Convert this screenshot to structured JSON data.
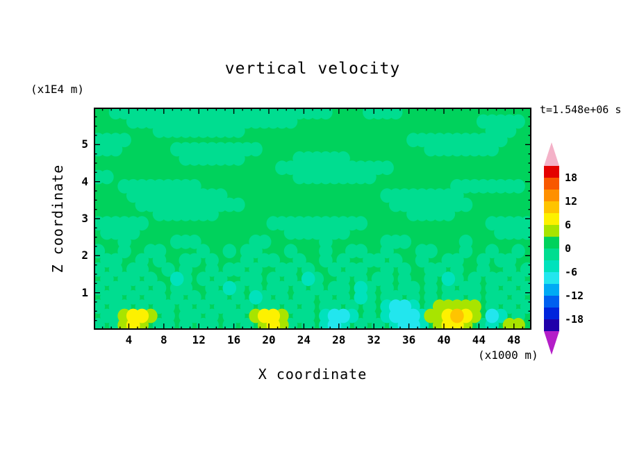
{
  "chart": {
    "title": "vertical velocity",
    "time_label": "t=1.548e+06 s",
    "x_axis": {
      "label": "X coordinate",
      "unit_label": "(x1000 m)",
      "ticks": [
        4,
        8,
        12,
        16,
        20,
        24,
        28,
        32,
        36,
        40,
        44,
        48
      ],
      "range": [
        0,
        50
      ]
    },
    "y_axis": {
      "label": "Z coordinate",
      "unit_label": "(x1E4 m)",
      "ticks": [
        1,
        2,
        3,
        4,
        5
      ],
      "range": [
        0,
        6
      ]
    }
  },
  "colorbar": {
    "labels": [
      18,
      12,
      6,
      0,
      -6,
      -12,
      -18
    ],
    "band_step": 3,
    "over_color": "#f4b2c8",
    "under_color": "#b41ec8",
    "bands": [
      {
        "min": 18,
        "max": 21,
        "color": "#e40000"
      },
      {
        "min": 15,
        "max": 18,
        "color": "#f85800"
      },
      {
        "min": 12,
        "max": 15,
        "color": "#ff9000"
      },
      {
        "min": 9,
        "max": 12,
        "color": "#ffc400"
      },
      {
        "min": 6,
        "max": 9,
        "color": "#fdf100"
      },
      {
        "min": 3,
        "max": 6,
        "color": "#a8e400"
      },
      {
        "min": 0,
        "max": 3,
        "color": "#00d25c"
      },
      {
        "min": -3,
        "max": 0,
        "color": "#00dd90"
      },
      {
        "min": -6,
        "max": -3,
        "color": "#00e2bc"
      },
      {
        "min": -9,
        "max": -6,
        "color": "#22e6ee"
      },
      {
        "min": -12,
        "max": -9,
        "color": "#00aaf4"
      },
      {
        "min": -15,
        "max": -12,
        "color": "#0060f0"
      },
      {
        "min": -18,
        "max": -15,
        "color": "#0024dc"
      },
      {
        "min": -21,
        "max": -18,
        "color": "#2000aa"
      }
    ]
  },
  "chart_data": {
    "type": "heatmap",
    "title": "vertical velocity",
    "xlabel": "X coordinate (x1000 m)",
    "ylabel": "Z coordinate (x1E4 m)",
    "time_label": "t=1.548e+06 s",
    "x_range": [
      0,
      50
    ],
    "z_range": [
      0,
      6
    ],
    "contour_interval": 3,
    "labeled_levels": [
      18,
      12,
      6,
      0,
      -6,
      -12,
      -18
    ],
    "value_encoding": {
      ".": 1.5,
      "e": -1.5,
      "t": -4.5,
      "c": -7.5,
      "l": 4.5,
      "y": 7.5,
      "o": 10.5
    },
    "grid_rows_top_to_bottom": [
      "..eeeeeeeeeeeeeeeeeeeeeeeee....eeee...............",
      "....eeeeeeeeeeeeeeeeeee.....................eeeee.",
      ".......eeeeeeeeee............................eee..",
      "eeee................................eeeeeeeeeee...",
      "eee......eeeeeeeeee...................eeeeeeee....",
      "..........eeeeeee......eeeeee.....................",
      ".....................eeeeeeeeeeeee................",
      "ee.....................eeeeeeeee..................",
      "...eeeeeeeee.............................eeeeeeee.",
      "....eeeeeeeeeee..................eeeeeeeee........",
      ".....eeeeeeeeeeee.................eeeeeeeee.......",
      ".......eeeeeee......................eeeee.........",
      "eeeeee..............eeeeeeeeeee..............eeeee",
      ".eeee.................eeeeeee.................eeee",
      "...e.....eee......ee......e......eee......e.......",
      "e..e..ee....e..e.ee...e...e..ee..e...ee...e..e..e.",
      ".ee..e.e..ee.e...e.ee..e..e.e..ee.e..e..ee..e.ee..",
      "e.e.ee..e.e..e.ee.e..ee.e..e.ee..e.e..ee.e..e..e.e",
      ".e.ee.e..te.e.e..ee.e.e.te..e.e.ee.e..e.te.e.ee.e.",
      "e.ee.e.e.ee..e.te.e.ee.e.e.ee.te.e.ee.e.e.ee.e.e.e",
      ".ee.e.ee.e.e.ee.e.te.e.ee.e.e.te.ee.e.e.ee.e.ee.e.",
      "e.ee.e.ee.e.e.ee.e.ee.e.e.ee.e.e.tcct.elllll.e.e.e",
      ".eelyyl.e.ee.e.ee.lyyl.ee.tcct.e.tccctllyoyl.ct.e.",
      "e.elyl.ee.e.ee.e.e.lyle.e.tct.e.e.tcct.lyyl.et.ll."
    ]
  }
}
